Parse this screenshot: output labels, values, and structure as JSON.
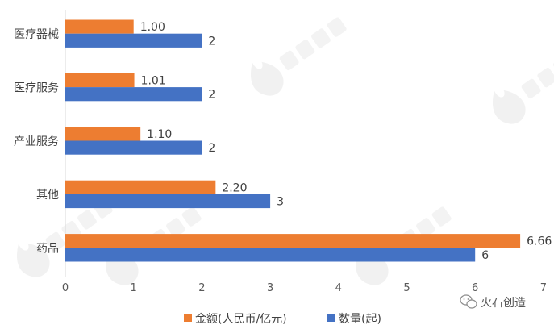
{
  "chart_data": {
    "type": "bar",
    "orientation": "horizontal",
    "categories": [
      "医疗器械",
      "医疗服务",
      "产业服务",
      "其他",
      "药品"
    ],
    "series": [
      {
        "name": "金额(人民币/亿元)",
        "values": [
          1.0,
          1.01,
          1.1,
          2.2,
          6.66
        ],
        "labels": [
          "1.00",
          "1.01",
          "1.10",
          "2.20",
          "6.66"
        ],
        "color": "#ED7D31"
      },
      {
        "name": "数量(起)",
        "values": [
          2,
          2,
          2,
          3,
          6
        ],
        "labels": [
          "2",
          "2",
          "2",
          "3",
          "6"
        ],
        "color": "#4472C4"
      }
    ],
    "xlim": [
      0,
      7
    ],
    "xticks": [
      "0",
      "1",
      "2",
      "3",
      "4",
      "5",
      "6",
      "7"
    ],
    "grid": false,
    "legend_position": "bottom"
  },
  "watermark": {
    "text": "火石创造"
  }
}
